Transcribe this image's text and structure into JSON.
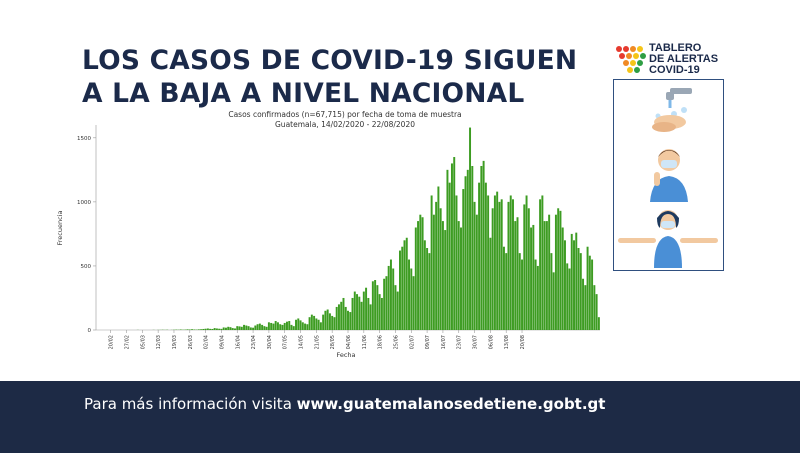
{
  "headline": {
    "line1": "LOS CASOS DE COVID-19 SIGUEN",
    "line2": "A LA BAJA A NIVEL NACIONAL"
  },
  "logo": {
    "line1": "TABLERO",
    "line2": "DE ALERTAS",
    "line3": "COVID-19",
    "colors": [
      "#e63a2e",
      "#f08a24",
      "#f5c518",
      "#2e9e44"
    ]
  },
  "footer": {
    "prefix": "Para más información visita ",
    "link": "www.guatemalanosedetiene.gobt.gt"
  },
  "colors": {
    "bar": "#3d9c22",
    "navy": "#1d2a45",
    "accent_blue": "#4a8fd6"
  },
  "chart_data": {
    "type": "bar",
    "title": "Casos confirmados (n=67,715) por fecha de toma de muestra",
    "subtitle": "Guatemala, 14/02/2020 - 22/08/2020",
    "xlabel": "Fecha",
    "ylabel": "Frecuencia",
    "ylim": [
      0,
      1600
    ],
    "yticks": [
      0,
      500,
      1000,
      1500
    ],
    "tick_labels": [
      "20/02",
      "27/02",
      "05/03",
      "12/03",
      "19/03",
      "26/03",
      "02/04",
      "09/04",
      "16/04",
      "23/04",
      "30/04",
      "07/05",
      "14/05",
      "21/05",
      "28/05",
      "04/06",
      "11/06",
      "18/06",
      "25/06",
      "02/07",
      "09/07",
      "16/07",
      "23/07",
      "30/07",
      "06/08",
      "13/08",
      "20/08"
    ],
    "tick_start_index": 6,
    "tick_step": 7,
    "grid": false,
    "legend": "none",
    "values": [
      0,
      0,
      0,
      0,
      0,
      0,
      0,
      0,
      0,
      0,
      0,
      0,
      0,
      0,
      0,
      0,
      0,
      0,
      1,
      0,
      0,
      0,
      0,
      0,
      0,
      1,
      0,
      1,
      1,
      2,
      1,
      2,
      0,
      1,
      2,
      3,
      2,
      4,
      2,
      3,
      5,
      4,
      6,
      4,
      3,
      5,
      6,
      8,
      10,
      12,
      9,
      8,
      15,
      12,
      10,
      9,
      20,
      18,
      25,
      22,
      15,
      12,
      30,
      28,
      25,
      40,
      35,
      30,
      20,
      18,
      35,
      45,
      50,
      40,
      30,
      25,
      60,
      55,
      50,
      70,
      60,
      45,
      40,
      55,
      65,
      70,
      40,
      30,
      80,
      90,
      75,
      60,
      50,
      45,
      100,
      120,
      110,
      90,
      80,
      60,
      120,
      150,
      160,
      130,
      110,
      100,
      180,
      200,
      220,
      250,
      180,
      150,
      140,
      250,
      300,
      280,
      260,
      220,
      300,
      330,
      250,
      200,
      380,
      390,
      350,
      280,
      250,
      400,
      420,
      500,
      550,
      480,
      350,
      300,
      620,
      650,
      700,
      720,
      550,
      480,
      420,
      800,
      850,
      900,
      880,
      700,
      640,
      600,
      1050,
      900,
      1000,
      1120,
      950,
      850,
      780,
      1250,
      1150,
      1300,
      1350,
      1050,
      850,
      800,
      1100,
      1200,
      1250,
      1580,
      1280,
      1000,
      900,
      1150,
      1280,
      1320,
      1150,
      1050,
      720,
      950,
      1050,
      1080,
      1000,
      1020,
      650,
      600,
      1000,
      1050,
      1020,
      850,
      880,
      600,
      550,
      980,
      1050,
      950,
      800,
      820,
      550,
      500,
      1020,
      1050,
      850,
      850,
      900,
      600,
      450,
      900,
      950,
      930,
      800,
      700,
      520,
      480,
      750,
      700,
      760,
      640,
      600,
      400,
      350,
      650,
      580,
      550,
      350,
      280,
      100
    ]
  }
}
